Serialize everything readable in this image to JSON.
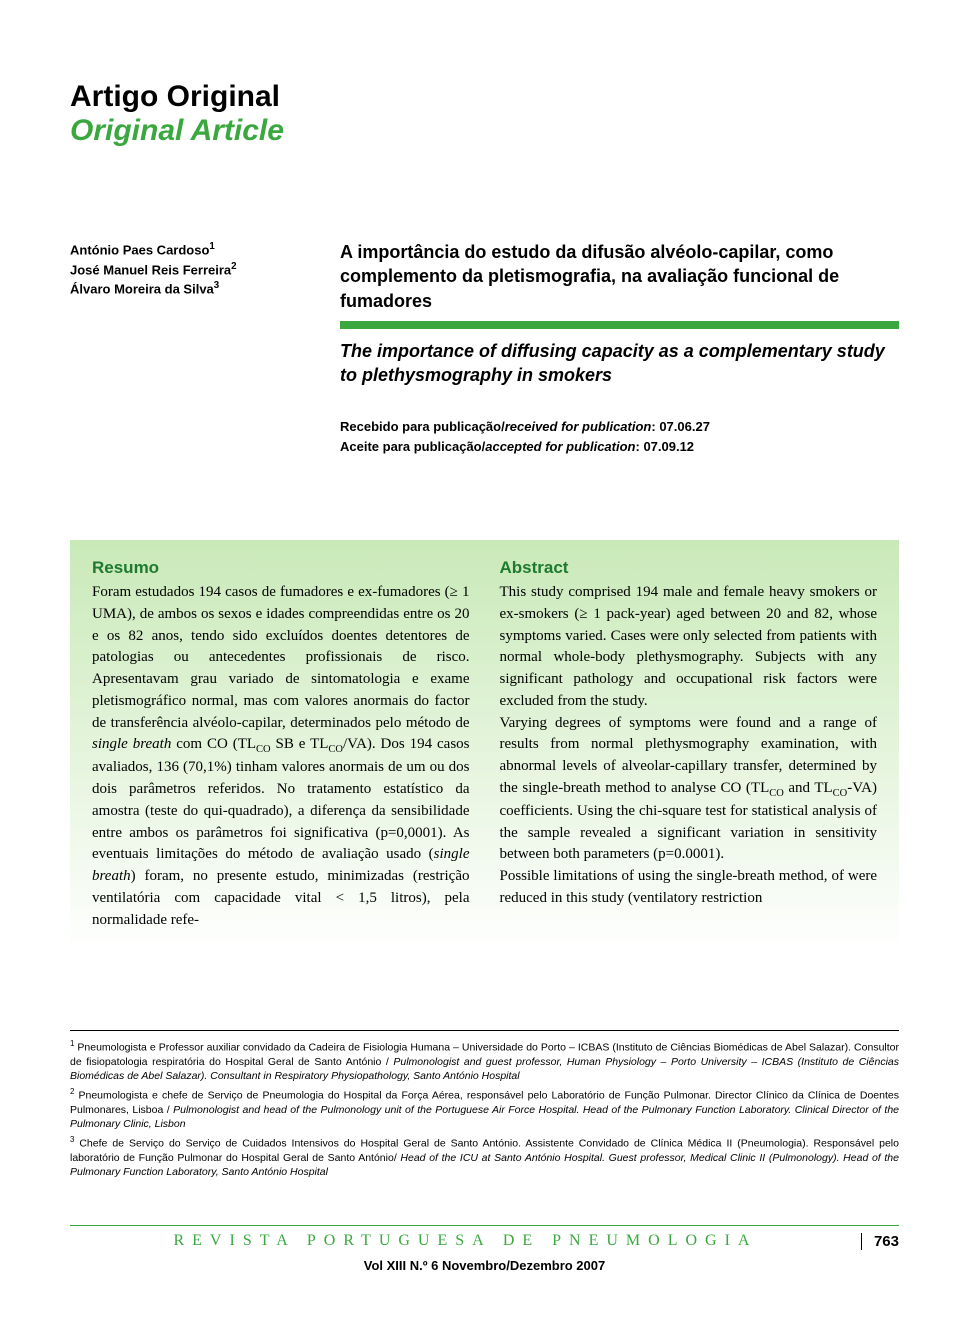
{
  "section": {
    "pt": "Artigo Original",
    "en": "Original Article"
  },
  "authors": [
    {
      "name": "António Paes Cardoso",
      "ref": "1"
    },
    {
      "name": "José Manuel Reis Ferreira",
      "ref": "2"
    },
    {
      "name": "Álvaro Moreira da Silva",
      "ref": "3"
    }
  ],
  "title": {
    "pt": "A importância do estudo da difusão alvéolo-capilar, como complemento da pletismografia, na avaliação funcional de fumadores",
    "en": "The importance of diffusing capacity as a complementary study to plethysmography in smokers"
  },
  "dates": {
    "received_label_pt": "Recebido para publicação/",
    "received_label_en": "received for publication",
    "received_date": "07.06.27",
    "accepted_label_pt": "Aceite para publicação/",
    "accepted_label_en": "accepted for publication",
    "accepted_date": "07.09.12"
  },
  "abstracts": {
    "pt": {
      "heading": "Resumo",
      "body_html": "Foram estudados 194 casos de fumadores e ex-fumadores (≥ 1 UMA), de ambos os sexos e idades compreendidas entre os 20 e os 82 anos, tendo sido excluídos doentes detentores de patologias ou antecedentes profissionais de risco. Apresentavam grau variado de sintomatologia e exame pletismográfico normal, mas com valores anormais do factor de transferência alvéolo-capilar, determinados pelo método de <span class=\"it\">single breath</span> com CO (TL<sub>CO</sub> SB e TL<sub>CO</sub>/VA). Dos 194 casos avaliados, 136 (70,1%) tinham valores anormais de um ou dos dois parâmetros referidos. No tratamento estatístico da amostra (teste do qui-quadrado), a diferença da sensibilidade entre ambos os parâmetros foi significativa (p=0,0001). As eventuais limitações do método de avaliação usado (<span class=\"it\">single breath</span>) foram, no presente estudo, minimizadas (restrição ventilatória com capacidade vital < 1,5 litros), pela normalidade refe-"
    },
    "en": {
      "heading": "Abstract",
      "body_html": "This study comprised 194 male and female heavy smokers or ex-smokers (≥ 1 pack-year) aged between 20 and 82, whose symptoms varied. Cases were only selected from patients with normal whole-body plethysmography. Subjects with any significant pathology and occupational risk factors were excluded from the study.<br>Varying degrees of symptoms were found and a range of results from normal plethysmography examination, with abnormal levels of alveolar-capillary transfer, determined by the single-breath method to analyse CO (TL<sub>CO</sub> and TL<sub>CO</sub>-VA) coefficients. Using the chi-square test for statistical analysis of the sample revealed a significant variation in sensitivity between both parameters (p=0.0001).<br>Possible limitations of using the single-breath method, of were reduced in this study (ventilatory restriction"
    }
  },
  "footnotes": [
    {
      "ref": "1",
      "html": "Pneumologista e Professor auxiliar convidado da Cadeira de Fisiologia Humana – Universidade do Porto – ICBAS (Instituto de Ciências Biomédicas de Abel Salazar). Consultor de fisiopatologia respiratória do Hospital Geral de Santo António / <span class=\"it\">Pulmonologist and guest professor, Human Physiology – Porto University – ICBAS (Instituto de Ciências Biomédicas de Abel Salazar). Consultant in Respiratory Physiopathology, Santo António Hospital</span>"
    },
    {
      "ref": "2",
      "html": "Pneumologista e chefe de Serviço de Pneumologia do Hospital da Força Aérea, responsável pelo Laboratório de Função Pulmonar. Director Clínico da Clínica de Doentes Pulmonares, Lisboa / <span class=\"it\">Pulmonologist and head of the Pulmonology unit of the Portuguese Air Force Hospital. Head of the Pulmonary Function Laboratory. Clinical Director of the Pulmonary Clinic, Lisbon</span>"
    },
    {
      "ref": "3",
      "html": "Chefe de Serviço do Serviço de Cuidados Intensivos do Hospital Geral de Santo António. Assistente Convidado de Clínica Médica II (Pneumologia). Responsável pelo laboratório de Função Pulmonar do Hospital Geral de Santo António/ <span class=\"it\">Head of the ICU at Santo António Hospital. Guest professor, Medical Clinic II (Pulmonology). Head of the Pulmonary Function Laboratory, Santo António Hospital</span>"
    }
  ],
  "footer": {
    "journal": "REVISTA PORTUGUESA DE PNEUMOLOGIA",
    "page": "763",
    "volume": "Vol XIII  N.º 6  Novembro/Dezembro  2007"
  },
  "colors": {
    "accent_green": "#3aa83f",
    "box_top": "#c9e9b8",
    "heading_green": "#1d7a2e"
  }
}
